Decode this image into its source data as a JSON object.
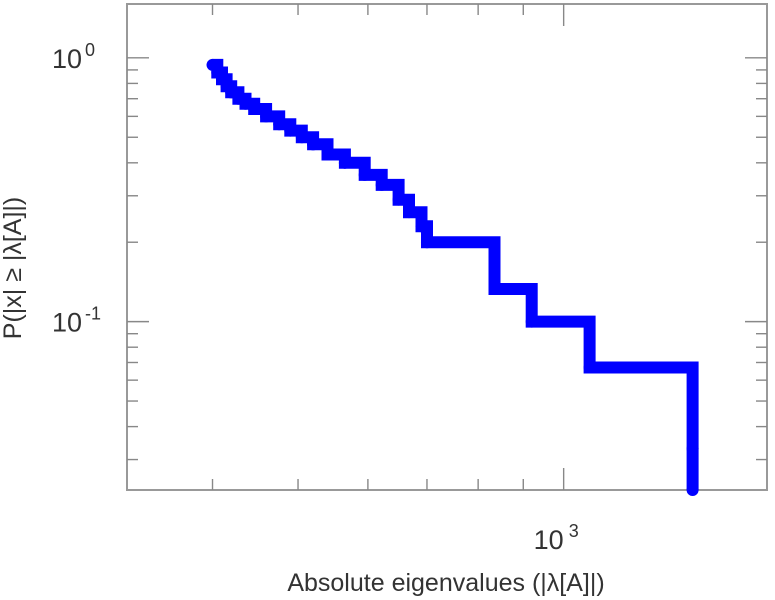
{
  "chart_data": {
    "type": "line",
    "title": "",
    "xlabel": "Absolute eigenvalues (|λ[A]|)",
    "ylabel": "P(|x| ≥ |λ[A]|)",
    "x_scale": "log",
    "y_scale": "log",
    "xlim": [
      320,
      1700
    ],
    "ylim": [
      0.023,
      1.6
    ],
    "grid": false,
    "legend": "none",
    "x_ticks": [
      {
        "base": "10",
        "exp": "3",
        "value": 1000
      }
    ],
    "y_ticks": [
      {
        "base": "10",
        "exp": "0",
        "value": 1
      },
      {
        "base": "10",
        "exp": "-1",
        "value": 0.1
      }
    ],
    "series": [
      {
        "color": "#0000ff",
        "step": "post",
        "x": [
          400,
          405,
          410,
          415,
          420,
          428,
          436,
          446,
          460,
          476,
          490,
          505,
          520,
          540,
          565,
          595,
          622,
          650,
          668,
          690,
          700,
          835,
          920,
          1070,
          1400,
          1400
        ],
        "y": [
          0.94,
          0.88,
          0.83,
          0.78,
          0.74,
          0.7,
          0.67,
          0.64,
          0.6,
          0.56,
          0.53,
          0.5,
          0.47,
          0.43,
          0.4,
          0.36,
          0.33,
          0.29,
          0.26,
          0.23,
          0.2,
          0.133,
          0.1,
          0.067,
          0.033,
          0.023
        ]
      }
    ]
  }
}
